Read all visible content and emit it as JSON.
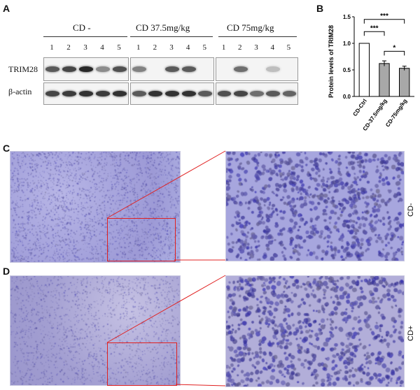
{
  "panels": {
    "a": "A",
    "b": "B",
    "c": "C",
    "d": "D"
  },
  "western_blot": {
    "groups": [
      "CD  -",
      "CD 37.5mg/kg",
      "CD 75mg/kg"
    ],
    "lanes": [
      "1",
      "2",
      "3",
      "4",
      "5"
    ],
    "rows": [
      "TRIM28",
      "β-actin"
    ],
    "trim28_intensity": [
      [
        0.7,
        0.8,
        0.95,
        0.45,
        0.75
      ],
      [
        0.5,
        0.0,
        0.7,
        0.7,
        0.0
      ],
      [
        0.0,
        0.6,
        0.0,
        0.2,
        0.0
      ]
    ],
    "actin_intensity": [
      [
        0.8,
        0.85,
        0.9,
        0.85,
        0.9
      ],
      [
        0.7,
        0.9,
        0.9,
        0.9,
        0.7
      ],
      [
        0.75,
        0.8,
        0.6,
        0.7,
        0.65
      ]
    ]
  },
  "chart_data": {
    "type": "bar",
    "categories": [
      "CD-Ctrl",
      "CD-37.5mg/kg",
      "CD-75mg/kg"
    ],
    "values": [
      1.0,
      0.62,
      0.53
    ],
    "errors": [
      0.0,
      0.05,
      0.04
    ],
    "bar_colors": [
      "#ffffff",
      "#a8a8a8",
      "#a8a8a8"
    ],
    "ylabel": "Protein levels of TRIM28",
    "ylim": [
      0,
      1.5
    ],
    "yticks": [
      "0.0",
      "0.5",
      "1.0",
      "1.5"
    ],
    "significance": [
      {
        "from": 0,
        "to": 1,
        "label": "***"
      },
      {
        "from": 0,
        "to": 2,
        "label": "***"
      },
      {
        "from": 1,
        "to": 2,
        "label": "*"
      }
    ]
  },
  "histology": {
    "c_side_label": "CD-",
    "d_side_label": "CD+"
  },
  "colors": {
    "zoom_box": "#e02020",
    "stain": "#a9a7de",
    "nuclei": "#3b3a9a"
  }
}
